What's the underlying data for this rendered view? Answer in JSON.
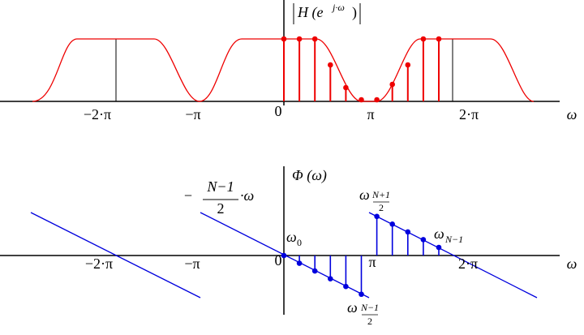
{
  "top": {
    "y_label": [
      "H (e",
      "j·ω",
      ")"
    ],
    "x_ticks": [
      "−2·π",
      "−π",
      "0",
      "π",
      "2·π"
    ],
    "x_label": "ω"
  },
  "bottom": {
    "y_label": "Φ (ω)",
    "x_ticks": [
      "−2·π",
      "−π",
      "0",
      "π",
      "2·π"
    ],
    "x_label": "ω",
    "line_label": {
      "sign": "−",
      "numerator": "N−1",
      "denominator": "2",
      "factor": "·ω"
    },
    "omega_0": {
      "base": "ω",
      "sub": "0"
    },
    "omega_upper": {
      "base": "ω",
      "sub_numerator": "N+1",
      "sub_denominator": "2"
    },
    "omega_last": {
      "base": "ω",
      "sub": "N−1"
    },
    "omega_lower": {
      "base": "ω",
      "sub_numerator": "N−1",
      "sub_denominator": "2"
    }
  }
}
